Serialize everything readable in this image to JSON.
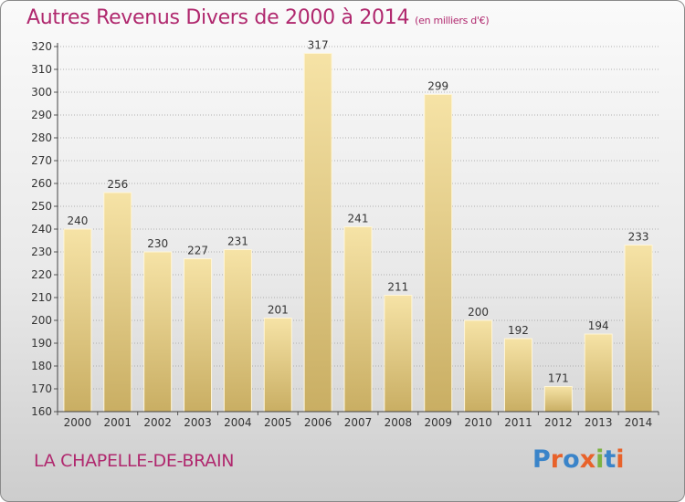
{
  "header": {
    "title": "Autres Revenus Divers de 2000 à 2014",
    "unit": "(en milliers d'€)"
  },
  "footer": {
    "place": "LA CHAPELLE-DE-BRAIN",
    "logo_text": "Proxiti",
    "logo_colors": [
      "#3a84c9",
      "#e8622a",
      "#3a84c9",
      "#e8622a",
      "#7cb342",
      "#3a84c9",
      "#e8622a"
    ]
  },
  "colors": {
    "title": "#b0286e",
    "bar_light": "#f6e3a6",
    "bar_dark": "#c9ae63",
    "grid": "#9c9c9c"
  },
  "chart_data": {
    "type": "bar",
    "title": "Autres Revenus Divers de 2000 à 2014",
    "subtitle": "(en milliers d'€)",
    "categories": [
      "2000",
      "2001",
      "2002",
      "2003",
      "2004",
      "2005",
      "2006",
      "2007",
      "2008",
      "2009",
      "2010",
      "2011",
      "2012",
      "2013",
      "2014"
    ],
    "values": [
      240,
      256,
      230,
      227,
      231,
      201,
      317,
      241,
      211,
      299,
      200,
      192,
      171,
      194,
      233
    ],
    "yticks": [
      160,
      170,
      180,
      190,
      200,
      210,
      220,
      230,
      240,
      250,
      260,
      270,
      280,
      290,
      300,
      310,
      320
    ],
    "ylim": [
      160,
      320
    ],
    "grid": true,
    "xlabel": "",
    "ylabel": ""
  }
}
